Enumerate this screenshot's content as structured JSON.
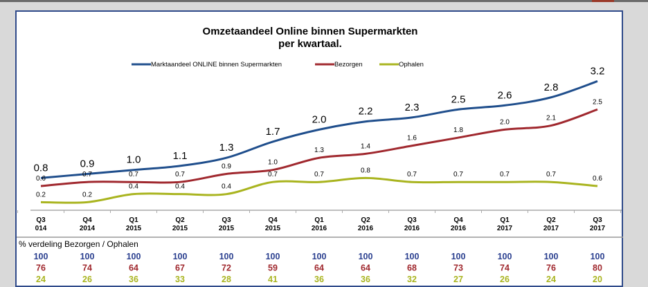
{
  "chart_data": {
    "type": "line",
    "title": "Omzetaandeel Online binnen Supermarkten",
    "subtitle": "per kwartaal.",
    "categories": [
      [
        "Q3",
        "014"
      ],
      [
        "Q4",
        "2014"
      ],
      [
        "Q1",
        "2015"
      ],
      [
        "Q2",
        "2015"
      ],
      [
        "Q3",
        "2015"
      ],
      [
        "Q4",
        "2015"
      ],
      [
        "Q1",
        "2016"
      ],
      [
        "Q2",
        "2016"
      ],
      [
        "Q3",
        "2016"
      ],
      [
        "Q4",
        "2016"
      ],
      [
        "Q1",
        "2017"
      ],
      [
        "Q2",
        "2017"
      ],
      [
        "Q3",
        "2017"
      ]
    ],
    "series": [
      {
        "name": "Marktaandeel ONLINE binnen Supermarkten",
        "color": "#1f4e8c",
        "values": [
          0.8,
          0.9,
          1.0,
          1.1,
          1.3,
          1.7,
          2.0,
          2.2,
          2.3,
          2.5,
          2.6,
          2.8,
          3.2
        ]
      },
      {
        "name": "Bezorgen",
        "color": "#a0282e",
        "values": [
          0.6,
          0.7,
          0.7,
          0.7,
          0.9,
          1.0,
          1.3,
          1.4,
          1.6,
          1.8,
          2.0,
          2.1,
          2.5
        ]
      },
      {
        "name": "Ophalen",
        "color": "#a9b41f",
        "values": [
          0.2,
          0.2,
          0.4,
          0.4,
          0.4,
          0.7,
          0.7,
          0.8,
          0.7,
          0.7,
          0.7,
          0.7,
          0.6
        ]
      }
    ],
    "ylim": [
      0,
      3.5
    ],
    "legend": "top-center",
    "grid": false
  },
  "table": {
    "title": "% verdeling Bezorgen / Ophalen",
    "rows": [
      {
        "color": "#2a3f8f",
        "values": [
          100,
          100,
          100,
          100,
          100,
          100,
          100,
          100,
          100,
          100,
          100,
          100,
          100
        ]
      },
      {
        "color": "#a0282e",
        "values": [
          76,
          74,
          64,
          67,
          72,
          59,
          64,
          64,
          68,
          73,
          74,
          76,
          80
        ]
      },
      {
        "color": "#a9b41f",
        "values": [
          24,
          26,
          36,
          33,
          28,
          41,
          36,
          36,
          32,
          27,
          26,
          24,
          20
        ]
      }
    ]
  }
}
